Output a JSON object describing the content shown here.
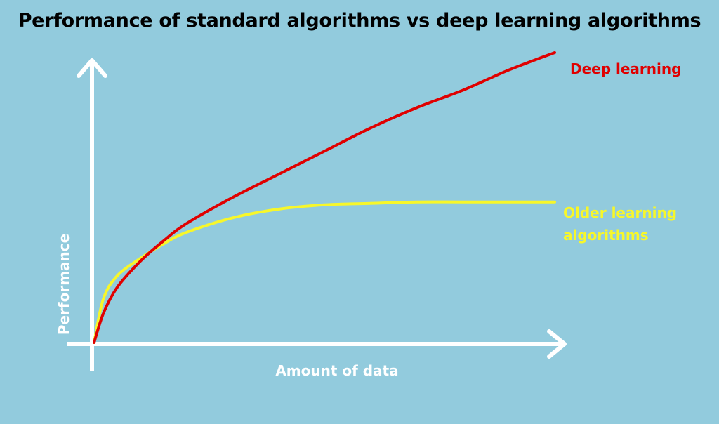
{
  "chart_data": {
    "type": "line",
    "title": "Performance of standard algorithms vs deep learning algorithms",
    "xlabel": "Amount of data",
    "ylabel": "Performance",
    "xlim": [
      0,
      1
    ],
    "ylim": [
      0,
      1
    ],
    "grid": false,
    "series": [
      {
        "name": "Deep learning",
        "color": "#E00000",
        "x": [
          0,
          0.02,
          0.05,
          0.1,
          0.15,
          0.2,
          0.3,
          0.4,
          0.5,
          0.6,
          0.7,
          0.8,
          0.9,
          1.0
        ],
        "y": [
          0,
          0.1,
          0.19,
          0.28,
          0.35,
          0.41,
          0.5,
          0.58,
          0.66,
          0.74,
          0.81,
          0.87,
          0.94,
          1.0
        ]
      },
      {
        "name": "Older learning algorithms",
        "name_lines": [
          "Older learning",
          "algorithms"
        ],
        "color": "#F7F72A",
        "x": [
          0,
          0.02,
          0.05,
          0.1,
          0.15,
          0.2,
          0.3,
          0.4,
          0.5,
          0.6,
          0.7,
          0.8,
          0.9,
          1.0
        ],
        "y": [
          0,
          0.15,
          0.23,
          0.29,
          0.34,
          0.38,
          0.43,
          0.46,
          0.475,
          0.48,
          0.485,
          0.485,
          0.485,
          0.485
        ]
      }
    ]
  }
}
